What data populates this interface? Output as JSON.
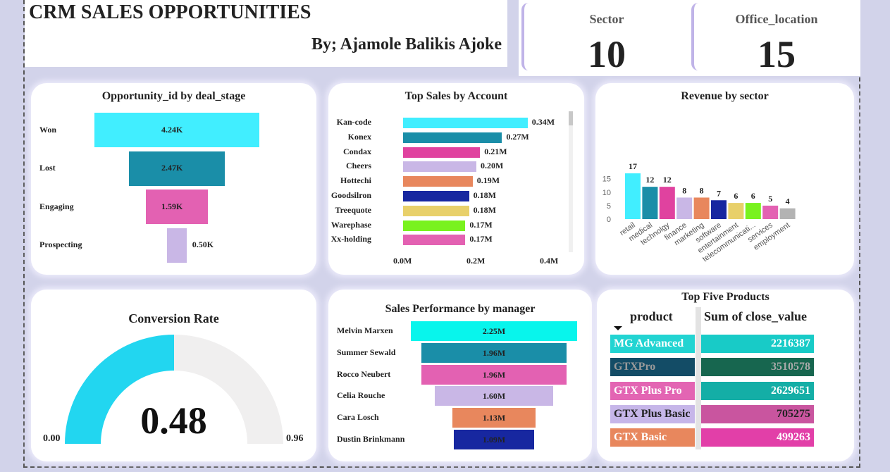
{
  "header": {
    "title": "CRM SALES OPPORTUNITIES",
    "byline": "By; Ajamole Balikis Ajoke"
  },
  "kpis": [
    {
      "label": "Sector",
      "value": "10"
    },
    {
      "label": "Office_location",
      "value": "15"
    }
  ],
  "colors": {
    "cyan": "#41eeff",
    "teal": "#1a8ea8",
    "pink": "#e361b2",
    "lavender": "#c9b7e6",
    "orange": "#e8875d",
    "navy": "#1727a0",
    "yellow": "#e8d06a",
    "green": "#79f21e",
    "magenta": "#e0429f",
    "grey": "#b3b3b3"
  },
  "chart_data": [
    {
      "type": "bar",
      "orientation": "funnel",
      "title": "Opportunity_id by deal_stage",
      "categories": [
        "Won",
        "Lost",
        "Engaging",
        "Prospecting"
      ],
      "values": [
        4240,
        2470,
        1590,
        500
      ],
      "value_labels": [
        "4.24K",
        "2.47K",
        "1.59K",
        "0.50K"
      ]
    },
    {
      "type": "bar",
      "orientation": "horizontal",
      "title": "Top Sales by Account",
      "categories": [
        "Kan-code",
        "Konex",
        "Condax",
        "Cheers",
        "Hottechi",
        "Goodsilron",
        "Treequote",
        "Warephase",
        "Xx-holding"
      ],
      "values": [
        0.34,
        0.27,
        0.21,
        0.2,
        0.19,
        0.18,
        0.18,
        0.17,
        0.17
      ],
      "value_labels": [
        "0.34M",
        "0.27M",
        "0.21M",
        "0.20M",
        "0.19M",
        "0.18M",
        "0.18M",
        "0.17M",
        "0.17M"
      ],
      "xlim": [
        0,
        0.4
      ],
      "x_ticks": [
        "0.0M",
        "0.2M",
        "0.4M"
      ]
    },
    {
      "type": "bar",
      "title": "Revenue by sector",
      "categories": [
        "retail",
        "medical",
        "technolgy",
        "finance",
        "marketing",
        "software",
        "entertainment",
        "telecommunicati...",
        "services",
        "employment"
      ],
      "values": [
        17,
        12,
        12,
        8,
        8,
        7,
        6,
        6,
        5,
        4
      ],
      "ylim": [
        0,
        18
      ],
      "y_ticks": [
        "0",
        "5",
        "10",
        "15"
      ]
    },
    {
      "type": "gauge",
      "title": "Conversion Rate",
      "value": 0.48,
      "value_label": "0.48",
      "min": 0,
      "max": 0.96,
      "min_label": "0.00",
      "max_label": "0.96"
    },
    {
      "type": "bar",
      "orientation": "funnel",
      "title": "Sales Performance by manager",
      "categories": [
        "Melvin Marxen",
        "Summer Sewald",
        "Rocco Neubert",
        "Celia Rouche",
        "Cara Losch",
        "Dustin Brinkmann"
      ],
      "values": [
        2.25,
        1.96,
        1.96,
        1.6,
        1.13,
        1.09
      ],
      "value_labels": [
        "2.25M",
        "1.96M",
        "1.96M",
        "1.60M",
        "1.13M",
        "1.09M"
      ]
    },
    {
      "type": "table",
      "title": "Top Five Products",
      "columns": [
        "product",
        "Sum of close_value"
      ],
      "rows": [
        [
          "MG Advanced",
          "2216387"
        ],
        [
          "GTXPro",
          "3510578"
        ],
        [
          "GTX Plus Pro",
          "2629651"
        ],
        [
          "GTX Plus Basic",
          "705275"
        ],
        [
          "GTX Basic",
          "499263"
        ]
      ]
    }
  ]
}
